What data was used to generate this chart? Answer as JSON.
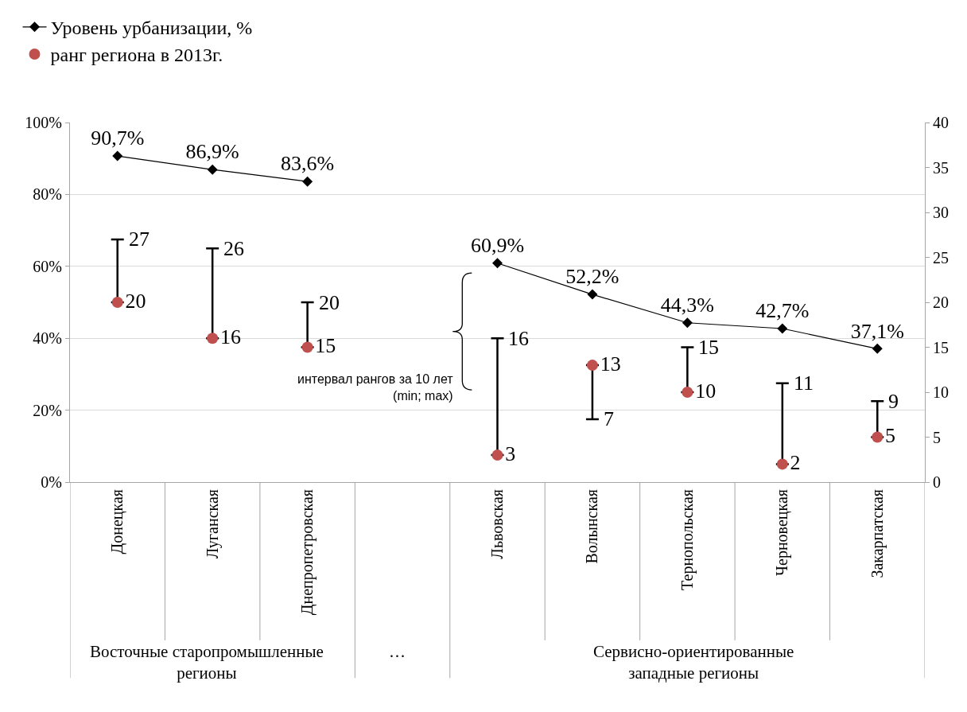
{
  "chart_data": {
    "type": "line",
    "categories": [
      "Донецкая",
      "Луганская",
      "Днепропетровская",
      null,
      "Львовская",
      "Волынская",
      "Тернопольская",
      "Черновецкая",
      "Закарпатская"
    ],
    "series": [
      {
        "name": "Уровень урбанизации, %",
        "color": "#000000",
        "marker": "diamond",
        "values": [
          90.7,
          86.9,
          83.6,
          null,
          60.9,
          52.2,
          44.3,
          42.7,
          37.1
        ],
        "value_labels": [
          "90,7%",
          "86,9%",
          "83,6%",
          null,
          "60,9%",
          "52,2%",
          "44,3%",
          "42,7%",
          "37,1%"
        ]
      },
      {
        "type": "scatter",
        "name": "ранг региона в 2013г.",
        "color": "#c0504d",
        "marker": "circle",
        "axis": "y2",
        "values": [
          20,
          16,
          15,
          null,
          3,
          13,
          10,
          2,
          5
        ],
        "value_labels": [
          "20",
          "16",
          "15",
          null,
          "3",
          "13",
          "10",
          "2",
          "5"
        ],
        "errors": [
          [
            20,
            27
          ],
          [
            16,
            26
          ],
          [
            15,
            20
          ],
          null,
          [
            3,
            16
          ],
          [
            7,
            13
          ],
          [
            10,
            15
          ],
          [
            2,
            11
          ],
          [
            5,
            9
          ]
        ]
      }
    ],
    "ylim": [
      0,
      100
    ],
    "yticks": [
      {
        "value": 0,
        "label": "0%"
      },
      {
        "value": 20,
        "label": "20%"
      },
      {
        "value": 40,
        "label": "40%"
      },
      {
        "value": 60,
        "label": "60%"
      },
      {
        "value": 80,
        "label": "80%"
      },
      {
        "value": 100,
        "label": "100%"
      }
    ],
    "y2lim": [
      0,
      40
    ],
    "y2ticks": [
      0,
      5,
      10,
      15,
      20,
      25,
      30,
      35,
      40
    ],
    "grid": "y",
    "legend": "top",
    "annotations": [
      "Восточные старопромышленные\nрегионы",
      "…",
      "Сервисно-ориентированные\nзападные регионы",
      "интервал рангов за 10 лет\n(min; max)",
      "27",
      "26",
      "20",
      "16",
      "7",
      "15",
      "11",
      "9"
    ]
  }
}
